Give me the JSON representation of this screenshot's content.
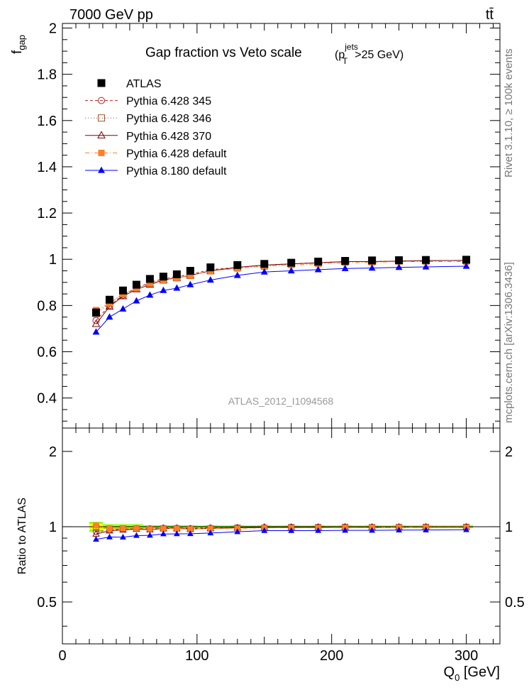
{
  "header": {
    "left": "7000 GeV pp",
    "right": "tt̄"
  },
  "side_labels": {
    "rivet": "Rivet 3.1.10, ≥ 100k events",
    "mcplots": "mcplots.cern.ch [arXiv:1306.3436]"
  },
  "analysis_id": "ATLAS_2012_I1094568",
  "chart_data": {
    "type": "line",
    "title": "Gap fraction vs Veto scale",
    "title_suffix": {
      "open": "(p",
      "sub": "T",
      "sup": "jets",
      "rest": ">25 GeV)"
    },
    "xlabel": {
      "main": "Q",
      "sub": "0",
      "unit": " [GeV]"
    },
    "ylabel": {
      "main": "f",
      "sub": "gap"
    },
    "ratio_ylabel": "Ratio to ATLAS",
    "xlim": [
      0,
      325
    ],
    "ylim": [
      0.27,
      2.02
    ],
    "ratio_ylim": [
      0.34,
      2.48
    ],
    "x_ticks": [
      0,
      100,
      200,
      300
    ],
    "y_ticks": [
      0.4,
      0.6,
      0.8,
      1,
      1.2,
      1.4,
      1.6,
      1.8,
      2
    ],
    "ratio_y_ticks": [
      0.5,
      1,
      2
    ],
    "x": [
      25,
      35,
      45,
      55,
      65,
      75,
      85,
      95,
      110,
      130,
      150,
      170,
      190,
      210,
      230,
      250,
      270,
      300
    ],
    "series": [
      {
        "name": "ATLAS",
        "color": "#000000",
        "marker": "filled-square",
        "line": "none",
        "values": [
          0.77,
          0.825,
          0.865,
          0.89,
          0.915,
          0.925,
          0.935,
          0.95,
          0.965,
          0.975,
          0.98,
          0.985,
          0.99,
          0.993,
          0.995,
          0.996,
          0.997,
          0.998
        ]
      },
      {
        "name": "Pythia 6.428 345",
        "color": "#b22222",
        "marker": "open-circle",
        "line": "dashed",
        "values": [
          0.735,
          0.8,
          0.845,
          0.875,
          0.9,
          0.915,
          0.925,
          0.935,
          0.955,
          0.965,
          0.975,
          0.98,
          0.985,
          0.99,
          0.99,
          0.992,
          0.994,
          0.995
        ]
      },
      {
        "name": "Pythia 6.428 346",
        "color": "#a0522d",
        "marker": "open-square",
        "line": "dotted",
        "values": [
          0.765,
          0.81,
          0.85,
          0.875,
          0.895,
          0.91,
          0.92,
          0.93,
          0.95,
          0.965,
          0.97,
          0.98,
          0.985,
          0.99,
          0.99,
          0.992,
          0.994,
          0.995
        ]
      },
      {
        "name": "Pythia 6.428 370",
        "color": "#7b0000",
        "marker": "open-triangle",
        "line": "solid",
        "values": [
          0.72,
          0.795,
          0.84,
          0.87,
          0.89,
          0.91,
          0.92,
          0.93,
          0.95,
          0.965,
          0.975,
          0.98,
          0.985,
          0.99,
          0.99,
          0.992,
          0.994,
          0.995
        ]
      },
      {
        "name": "Pythia 6.428 default",
        "color": "#ff7f27",
        "marker": "filled-square",
        "line": "dashdot",
        "values": [
          0.78,
          0.81,
          0.85,
          0.875,
          0.895,
          0.91,
          0.92,
          0.93,
          0.95,
          0.96,
          0.97,
          0.975,
          0.98,
          0.985,
          0.987,
          0.99,
          0.99,
          0.99
        ]
      },
      {
        "name": "Pythia 8.180 default",
        "color": "#0000ff",
        "marker": "filled-triangle",
        "line": "solid",
        "values": [
          0.685,
          0.75,
          0.785,
          0.82,
          0.845,
          0.865,
          0.875,
          0.89,
          0.91,
          0.93,
          0.945,
          0.95,
          0.955,
          0.96,
          0.962,
          0.965,
          0.967,
          0.97
        ]
      }
    ],
    "ratio_band": {
      "color_inner": "#ffff00",
      "color_outer": "#7cfc00"
    },
    "legend_placement": "top-left",
    "grid": false
  }
}
